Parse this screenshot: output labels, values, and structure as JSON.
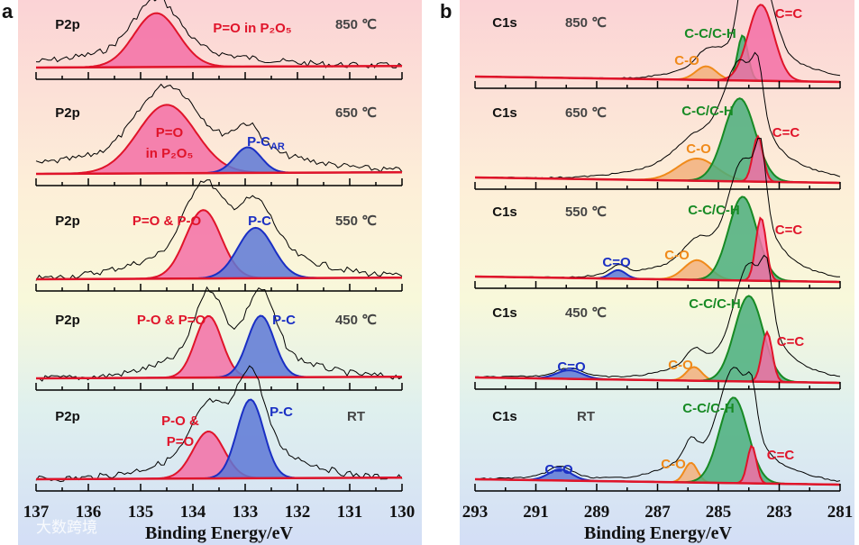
{
  "watermark": "大数跨境",
  "colors": {
    "red": "#e0142a",
    "red_fill": "#f36fa6",
    "blue": "#1a2fc4",
    "blue_fill": "#5d78d6",
    "green": "#178a24",
    "green_fill": "#4aae7c",
    "orange": "#f08a1a",
    "orange_fill": "#f2b07c",
    "raw": "#000000"
  },
  "chart_data": {
    "type": "line",
    "panels": [
      {
        "letter": "a",
        "xlabel": "Binding Energy/eV",
        "xlim": [
          137,
          130
        ],
        "xticks": [
          "137",
          "136",
          "135",
          "134",
          "133",
          "132",
          "131",
          "130"
        ],
        "ylabel": "",
        "spectra": [
          {
            "core": "P2p",
            "temp": "850 ℃",
            "peaks": [
              {
                "lines": [
                  "P=O in P₂O₅"
                ],
                "center": 134.7,
                "fwhm": 1.0,
                "intensity": 63,
                "color": "red"
              }
            ]
          },
          {
            "core": "P2p",
            "temp": "650 ℃",
            "peaks": [
              {
                "lines": [
                  "P=O",
                  "in P₂O₅"
                ],
                "center": 134.5,
                "fwhm": 1.3,
                "intensity": 80,
                "color": "red"
              },
              {
                "lines": [
                  "P-C"
                ],
                "sub": "AR",
                "center": 132.95,
                "fwhm": 0.6,
                "intensity": 30,
                "color": "blue"
              }
            ]
          },
          {
            "core": "P2p",
            "temp": "550 ℃",
            "peaks": [
              {
                "lines": [
                  "P=O & P-O"
                ],
                "center": 133.8,
                "fwhm": 0.8,
                "intensity": 80,
                "color": "red"
              },
              {
                "lines": [
                  "P-C"
                ],
                "center": 132.8,
                "fwhm": 0.8,
                "intensity": 59,
                "color": "blue"
              }
            ]
          },
          {
            "core": "P2p",
            "temp": "450 ℃",
            "peaks": [
              {
                "lines": [
                  "P-O & P=O"
                ],
                "center": 133.7,
                "fwhm": 0.6,
                "intensity": 72,
                "color": "red"
              },
              {
                "lines": [
                  "P-C"
                ],
                "center": 132.7,
                "fwhm": 0.6,
                "intensity": 72,
                "color": "blue"
              }
            ]
          },
          {
            "core": "P2p",
            "temp": "RT",
            "peaks": [
              {
                "lines": [
                  "P-O &",
                  "P=O"
                ],
                "center": 133.7,
                "fwhm": 0.7,
                "intensity": 55,
                "color": "red"
              },
              {
                "lines": [
                  "P-C"
                ],
                "center": 132.9,
                "fwhm": 0.6,
                "intensity": 92,
                "color": "blue"
              }
            ]
          }
        ]
      },
      {
        "letter": "b",
        "xlabel": "Binding Energy/eV",
        "xlim": [
          293,
          281
        ],
        "xticks": [
          "293",
          "291",
          "289",
          "287",
          "285",
          "283",
          "281"
        ],
        "ylabel": "",
        "spectra": [
          {
            "core": "C1s",
            "temp": "850 ℃",
            "peaks": [
              {
                "lines": [
                  "C-O"
                ],
                "center": 285.4,
                "fwhm": 0.8,
                "intensity": 16,
                "color": "orange"
              },
              {
                "lines": [
                  "C-C/C-H"
                ],
                "center": 284.2,
                "fwhm": 0.4,
                "intensity": 53,
                "color": "green"
              },
              {
                "lines": [
                  "C=C"
                ],
                "center": 283.6,
                "fwhm": 1.0,
                "intensity": 89,
                "color": "red"
              }
            ]
          },
          {
            "core": "C1s",
            "temp": "650 ℃",
            "peaks": [
              {
                "lines": [
                  "C-O"
                ],
                "center": 285.7,
                "fwhm": 1.5,
                "intensity": 26,
                "color": "orange"
              },
              {
                "lines": [
                  "C-C/C-H"
                ],
                "center": 284.3,
                "fwhm": 1.2,
                "intensity": 97,
                "color": "green"
              },
              {
                "lines": [
                  "C=C"
                ],
                "center": 283.7,
                "fwhm": 0.4,
                "intensity": 53,
                "color": "red"
              }
            ]
          },
          {
            "core": "C1s",
            "temp": "550 ℃",
            "peaks": [
              {
                "lines": [
                  "C=O"
                ],
                "center": 288.3,
                "fwhm": 0.6,
                "intensity": 10,
                "color": "blue"
              },
              {
                "lines": [
                  "C-O"
                ],
                "center": 285.7,
                "fwhm": 1.0,
                "intensity": 23,
                "color": "orange"
              },
              {
                "lines": [
                  "C-C/C-H"
                ],
                "center": 284.2,
                "fwhm": 1.1,
                "intensity": 98,
                "color": "green"
              },
              {
                "lines": [
                  "C=C"
                ],
                "center": 283.6,
                "fwhm": 0.4,
                "intensity": 74,
                "color": "red"
              }
            ]
          },
          {
            "core": "C1s",
            "temp": "450 ℃",
            "peaks": [
              {
                "lines": [
                  "C=O"
                ],
                "center": 289.9,
                "fwhm": 1.0,
                "intensity": 10,
                "color": "blue"
              },
              {
                "lines": [
                  "C-O"
                ],
                "center": 285.8,
                "fwhm": 0.6,
                "intensity": 16,
                "color": "orange"
              },
              {
                "lines": [
                  "C-C/C-H"
                ],
                "center": 284.0,
                "fwhm": 1.1,
                "intensity": 100,
                "color": "green"
              },
              {
                "lines": [
                  "C=C"
                ],
                "center": 283.4,
                "fwhm": 0.4,
                "intensity": 58,
                "color": "red"
              }
            ]
          },
          {
            "core": "C1s",
            "temp": "RT",
            "peaks": [
              {
                "lines": [
                  "C=O"
                ],
                "center": 290.2,
                "fwhm": 0.9,
                "intensity": 13,
                "color": "blue"
              },
              {
                "lines": [
                  "C-O"
                ],
                "center": 285.9,
                "fwhm": 0.5,
                "intensity": 23,
                "color": "orange"
              },
              {
                "lines": [
                  "C-C/C-H"
                ],
                "center": 284.5,
                "fwhm": 1.1,
                "intensity": 100,
                "color": "green"
              },
              {
                "lines": [
                  "C=C"
                ],
                "center": 283.9,
                "fwhm": 0.35,
                "intensity": 44,
                "color": "red"
              }
            ]
          }
        ]
      }
    ]
  }
}
